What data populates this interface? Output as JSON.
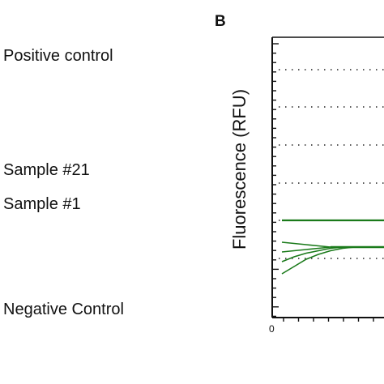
{
  "labels": {
    "positive": "Positive control",
    "sample21": "Sample #21",
    "sample1": "Sample #1",
    "negative": "Negative Control"
  },
  "panel": "B",
  "chart_data": {
    "type": "line",
    "title": "",
    "xlabel": "",
    "ylabel": "Fluorescence (RFU)",
    "x_tick_labels": [
      "0"
    ],
    "grid": "dotted horizontal",
    "series": [
      {
        "color": "#1a7a1a",
        "x": [
          0,
          1,
          2,
          3,
          4,
          5,
          6,
          7,
          8,
          9,
          10,
          11,
          12
        ],
        "y": [
          0.64,
          0.64,
          0.64,
          0.64,
          0.64,
          0.64,
          0.64,
          0.64,
          0.64,
          0.64,
          0.64,
          0.64,
          0.64
        ]
      },
      {
        "color": "#1a7a1a",
        "x": [
          0,
          1,
          2,
          3,
          4,
          5,
          6,
          7,
          8,
          9,
          10,
          11,
          12
        ],
        "y": [
          0.46,
          0.45,
          0.44,
          0.43,
          0.42,
          0.42,
          0.42,
          0.42,
          0.42,
          0.42,
          0.42,
          0.42,
          0.42
        ]
      },
      {
        "color": "#1a7a1a",
        "x": [
          0,
          1,
          2,
          3,
          4,
          5,
          6,
          7,
          8,
          9,
          10,
          11,
          12
        ],
        "y": [
          0.38,
          0.39,
          0.4,
          0.41,
          0.42,
          0.42,
          0.42,
          0.42,
          0.42,
          0.42,
          0.42,
          0.42,
          0.42
        ]
      },
      {
        "color": "#1a7a1a",
        "x": [
          0,
          1,
          2,
          3,
          4,
          5,
          6,
          7,
          8,
          9,
          10,
          11,
          12
        ],
        "y": [
          0.2,
          0.26,
          0.32,
          0.36,
          0.39,
          0.41,
          0.42,
          0.42,
          0.42,
          0.42,
          0.42,
          0.42,
          0.42
        ]
      },
      {
        "color": "#1a7a1a",
        "x": [
          0,
          1,
          2,
          3,
          4,
          5,
          6,
          7,
          8,
          9,
          10,
          11,
          12
        ],
        "y": [
          0.3,
          0.34,
          0.37,
          0.39,
          0.41,
          0.42,
          0.42,
          0.42,
          0.42,
          0.42,
          0.42,
          0.42,
          0.42
        ]
      }
    ],
    "xlim": [
      0,
      12
    ],
    "ylim": [
      0,
      2
    ]
  }
}
